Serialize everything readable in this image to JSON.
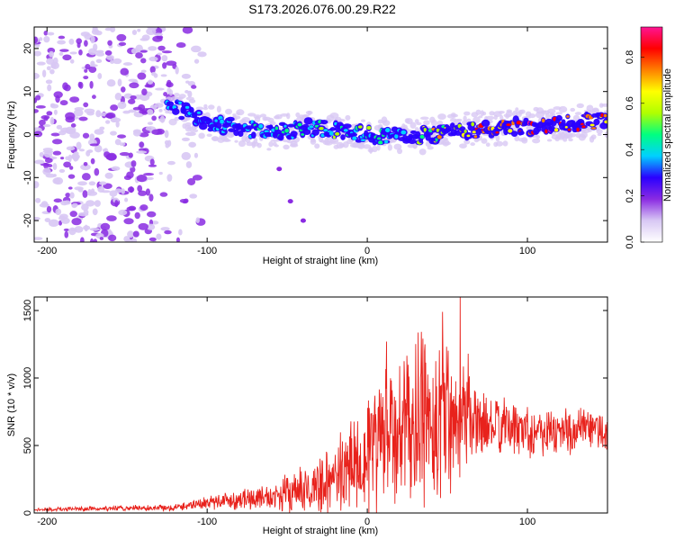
{
  "title": "S173.2026.076.00.29.R22",
  "chart_data": [
    {
      "type": "heatmap",
      "xlabel": "Height of straight line (km)",
      "ylabel": "Frequency (Hz)",
      "xlim": [
        -208,
        150
      ],
      "ylim": [
        -25,
        25
      ],
      "xticks": [
        -200,
        -100,
        0,
        100
      ],
      "xtick_labels": [
        "-200",
        "-100",
        "0",
        "100"
      ],
      "yticks": [
        -20,
        -10,
        0,
        10,
        20
      ],
      "ytick_labels": [
        "-20",
        "-10",
        "0",
        "10",
        "20"
      ],
      "ridge": {
        "x": [
          -125,
          -100,
          -80,
          -60,
          -40,
          -20,
          0,
          20,
          40,
          60,
          80,
          100,
          120,
          150
        ],
        "y": [
          7,
          3,
          1.5,
          0.5,
          1.5,
          1,
          0,
          -0.5,
          0,
          1,
          1.5,
          2,
          2.5,
          3
        ],
        "normalized_amplitude": [
          0.2,
          0.3,
          0.3,
          0.35,
          0.4,
          0.45,
          0.45,
          0.4,
          0.6,
          0.75,
          0.8,
          0.85,
          0.8,
          0.8
        ]
      },
      "noise_region_x": [
        -208,
        -115
      ],
      "colorbar": {
        "label": "Normalized spectral amplitude",
        "range": [
          0,
          0.93
        ],
        "ticks": [
          0,
          0.2,
          0.4,
          0.6,
          0.8
        ],
        "tick_labels": [
          "0.0",
          "0.2",
          "0.4",
          "0.6",
          "0.8"
        ],
        "colors": [
          "#ffffff",
          "#d8c8f4",
          "#8a2be2",
          "#2a00ff",
          "#00d0ff",
          "#00ff80",
          "#b0ff00",
          "#ffff00",
          "#ff8000",
          "#ff0000",
          "#ff1493"
        ]
      }
    },
    {
      "type": "line",
      "xlabel": "Height of straight line (km)",
      "ylabel": "SNR (10 * v/v)",
      "xlim": [
        -208,
        150
      ],
      "ylim": [
        0,
        1600
      ],
      "xticks": [
        -200,
        -100,
        0,
        100
      ],
      "xtick_labels": [
        "-200",
        "-100",
        "0",
        "100"
      ],
      "yticks": [
        0,
        500,
        1000,
        1500
      ],
      "ytick_labels": [
        "0",
        "500",
        "1000",
        "1500"
      ],
      "color": "#e8221c",
      "envelope": {
        "x": [
          -208,
          -120,
          -100,
          -80,
          -60,
          -40,
          -20,
          -10,
          0,
          10,
          20,
          30,
          40,
          50,
          60,
          70,
          80,
          100,
          120,
          150
        ],
        "mean": [
          25,
          40,
          80,
          100,
          120,
          160,
          250,
          380,
          450,
          550,
          600,
          650,
          680,
          750,
          720,
          650,
          640,
          620,
          600,
          620
        ],
        "amplitude": [
          15,
          30,
          60,
          90,
          120,
          200,
          300,
          450,
          550,
          650,
          650,
          700,
          800,
          800,
          450,
          280,
          250,
          230,
          220,
          200
        ]
      },
      "peaks": [
        {
          "x": 58,
          "y": 1600
        },
        {
          "x": 47,
          "y": 1490
        },
        {
          "x": 12,
          "y": 1270
        },
        {
          "x": 36,
          "y": 1250
        },
        {
          "x": 63,
          "y": 1180
        }
      ]
    }
  ]
}
